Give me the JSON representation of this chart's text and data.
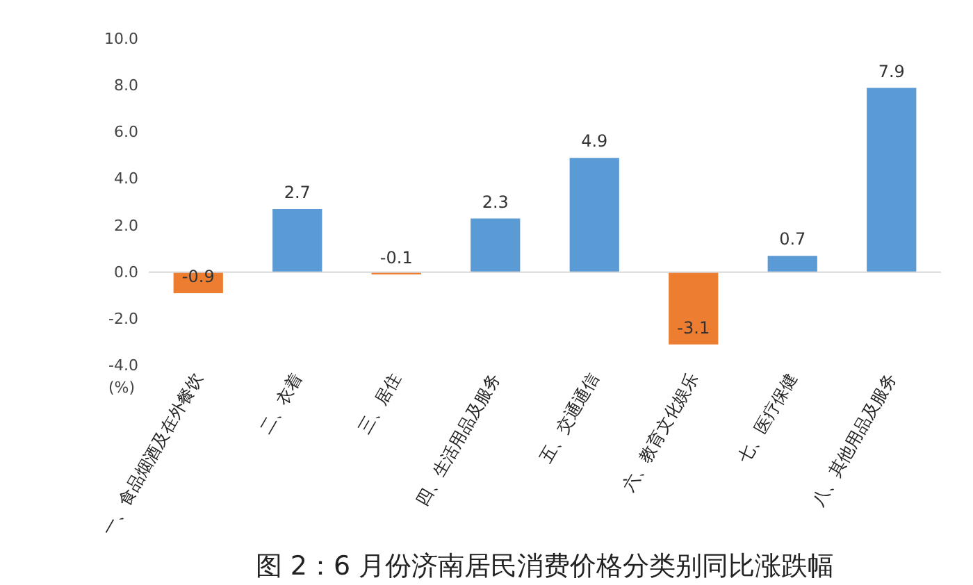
{
  "chart_data": {
    "type": "bar",
    "title": "图 2：6 月份济南居民消费价格分类别同比涨跌幅",
    "ylabel": "(%)",
    "categories": [
      "一、食品烟酒及在外餐饮",
      "二、衣着",
      "三、居住",
      "四、生活用品及服务",
      "五、交通通信",
      "六、教育文化娱乐",
      "七、医疗保健",
      "八、其他用品及服务"
    ],
    "values": [
      -0.9,
      2.7,
      -0.1,
      2.3,
      4.9,
      -3.1,
      0.7,
      7.9
    ],
    "colors": [
      "#ed7d31",
      "#5b9bd5",
      "#ed7d31",
      "#5b9bd5",
      "#5b9bd5",
      "#ed7d31",
      "#5b9bd5",
      "#5b9bd5"
    ],
    "ylim": [
      -4,
      10
    ],
    "yticks": [
      {
        "value": -4,
        "label": "-4.0"
      },
      {
        "value": -2,
        "label": "-2.0"
      },
      {
        "value": 0,
        "label": "0.0"
      },
      {
        "value": 2,
        "label": "2.0"
      },
      {
        "value": 4,
        "label": "4.0"
      },
      {
        "value": 6,
        "label": "6.0"
      },
      {
        "value": 8,
        "label": "8.0"
      },
      {
        "value": 10,
        "label": "10.0"
      }
    ],
    "ref_lines": [
      {
        "axis": "y",
        "value": 0,
        "color": "#d9d9d9"
      }
    ],
    "data_labels": true,
    "grid": false
  }
}
